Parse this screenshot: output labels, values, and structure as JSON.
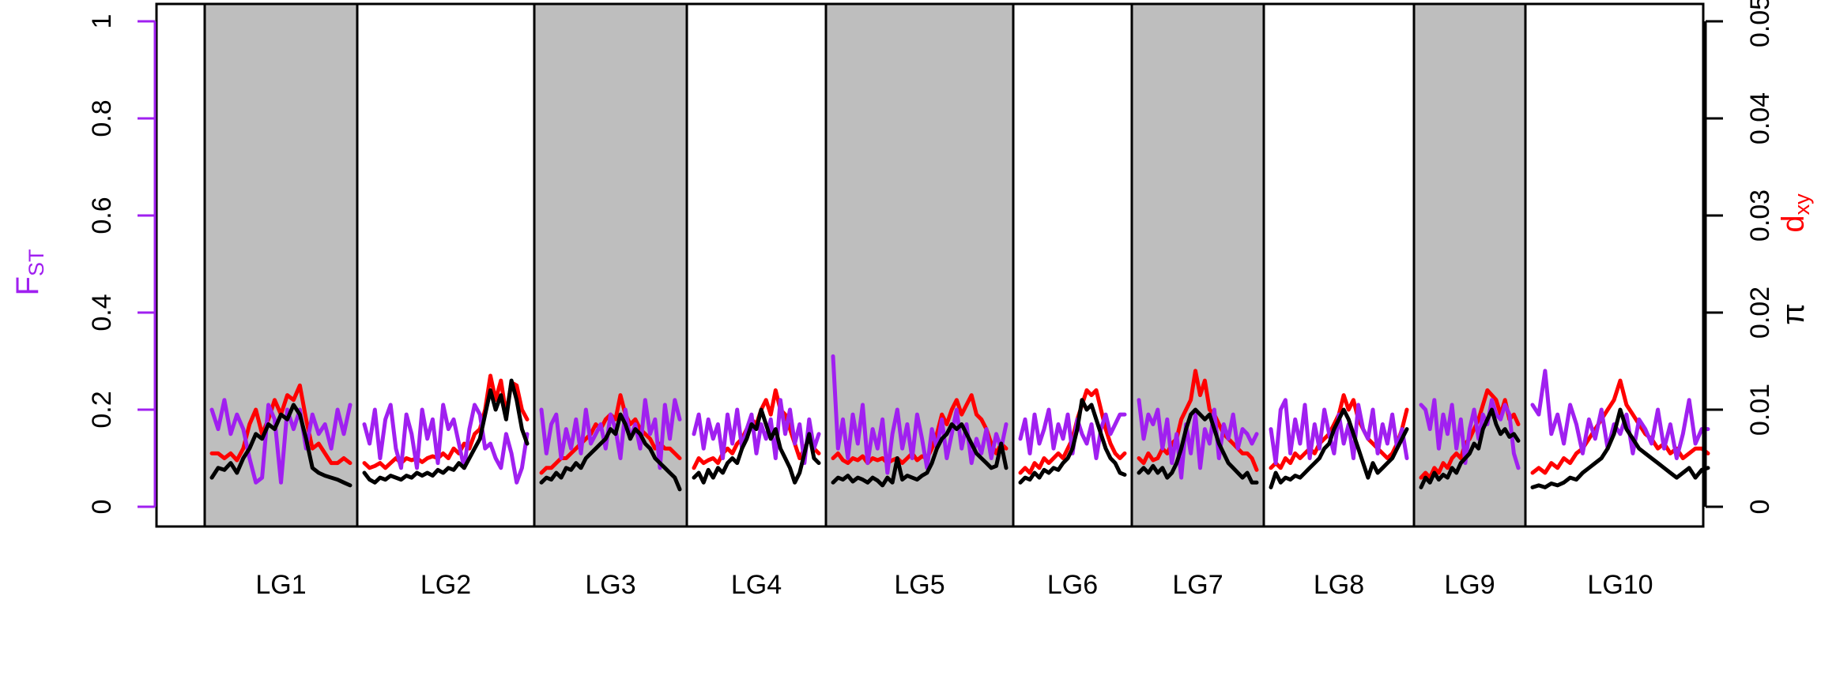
{
  "chart_data": {
    "type": "line",
    "title": "",
    "colors": {
      "fst": "#a020f0",
      "dxy": "#ff0000",
      "pi": "#000000",
      "shade": "#bebebe"
    },
    "y_left": {
      "label_main": "F",
      "label_sub": "ST",
      "ylim": [
        0,
        1
      ],
      "ticks": [
        "0",
        "0.2",
        "0.4",
        "0.6",
        "0.8",
        "1"
      ]
    },
    "y_right": {
      "labels": [
        "π",
        "d"
      ],
      "label_sub": "xy",
      "ylim": [
        0,
        0.05
      ],
      "ticks": [
        "0",
        "0.01",
        "0.02",
        "0.03",
        "0.04",
        "0.05"
      ]
    },
    "linkage_groups": [
      {
        "name": "LG1",
        "shaded": true
      },
      {
        "name": "LG2",
        "shaded": false
      },
      {
        "name": "LG3",
        "shaded": true
      },
      {
        "name": "LG4",
        "shaded": false
      },
      {
        "name": "LG5",
        "shaded": true
      },
      {
        "name": "LG6",
        "shaded": false
      },
      {
        "name": "LG7",
        "shaded": true
      },
      {
        "name": "LG8",
        "shaded": false
      },
      {
        "name": "LG9",
        "shaded": true
      },
      {
        "name": "LG10",
        "shaded": false
      }
    ],
    "series": [
      {
        "key": "fst",
        "axis": "left",
        "values": [
          [
            0.2,
            0.16,
            0.22,
            0.15,
            0.19,
            0.16,
            0.1,
            0.05,
            0.06,
            0.21,
            0.18,
            0.05,
            0.2,
            0.16,
            0.2,
            0.12,
            0.19,
            0.15,
            0.17,
            0.12,
            0.2,
            0.15,
            0.21
          ],
          [
            0.17,
            0.13,
            0.2,
            0.1,
            0.18,
            0.21,
            0.12,
            0.08,
            0.19,
            0.15,
            0.08,
            0.2,
            0.14,
            0.18,
            0.09,
            0.21,
            0.16,
            0.18,
            0.13,
            0.08,
            0.16,
            0.21,
            0.19,
            0.12,
            0.13,
            0.1,
            0.08,
            0.15,
            0.11,
            0.05,
            0.08,
            0.15
          ],
          [
            0.2,
            0.11,
            0.17,
            0.19,
            0.1,
            0.16,
            0.12,
            0.18,
            0.11,
            0.2,
            0.13,
            0.15,
            0.17,
            0.12,
            0.19,
            0.16,
            0.1,
            0.2,
            0.14,
            0.17,
            0.12,
            0.22,
            0.15,
            0.18,
            0.08,
            0.21,
            0.14,
            0.22,
            0.18
          ],
          [
            0.15,
            0.19,
            0.12,
            0.18,
            0.14,
            0.17,
            0.1,
            0.19,
            0.13,
            0.2,
            0.12,
            0.16,
            0.19,
            0.11,
            0.17,
            0.14,
            0.18,
            0.1,
            0.22,
            0.15,
            0.2,
            0.13,
            0.17,
            0.09,
            0.18,
            0.12,
            0.15
          ],
          [
            0.31,
            0.12,
            0.18,
            0.1,
            0.19,
            0.13,
            0.21,
            0.09,
            0.16,
            0.12,
            0.18,
            0.07,
            0.15,
            0.2,
            0.12,
            0.17,
            0.1,
            0.19,
            0.14,
            0.08,
            0.16,
            0.12,
            0.18,
            0.1,
            0.15,
            0.2,
            0.12,
            0.17,
            0.09,
            0.14,
            0.11,
            0.16,
            0.1,
            0.15,
            0.12,
            0.17
          ],
          [
            0.14,
            0.18,
            0.11,
            0.19,
            0.13,
            0.16,
            0.2,
            0.12,
            0.17,
            0.14,
            0.19,
            0.11,
            0.18,
            0.15,
            0.13,
            0.17,
            0.1,
            0.16,
            0.19,
            0.15,
            0.17,
            0.19,
            0.19
          ],
          [
            0.22,
            0.14,
            0.19,
            0.17,
            0.2,
            0.12,
            0.18,
            0.09,
            0.15,
            0.06,
            0.17,
            0.11,
            0.19,
            0.08,
            0.16,
            0.13,
            0.2,
            0.1,
            0.17,
            0.14,
            0.19,
            0.12,
            0.16,
            0.15,
            0.13,
            0.15
          ],
          [
            0.16,
            0.09,
            0.2,
            0.22,
            0.11,
            0.18,
            0.13,
            0.21,
            0.1,
            0.17,
            0.12,
            0.2,
            0.15,
            0.11,
            0.19,
            0.13,
            0.17,
            0.1,
            0.21,
            0.16,
            0.14,
            0.2,
            0.11,
            0.17,
            0.13,
            0.19,
            0.12,
            0.16,
            0.1
          ],
          [
            0.21,
            0.2,
            0.16,
            0.22,
            0.12,
            0.19,
            0.15,
            0.21,
            0.12,
            0.18,
            0.09,
            0.16,
            0.2,
            0.14,
            0.19,
            0.17,
            0.22,
            0.19,
            0.18,
            0.21,
            0.19,
            0.11,
            0.08
          ],
          [
            0.21,
            0.19,
            0.28,
            0.15,
            0.19,
            0.13,
            0.21,
            0.17,
            0.11,
            0.18,
            0.14,
            0.2,
            0.12,
            0.17,
            0.15,
            0.19,
            0.11,
            0.18,
            0.16,
            0.13,
            0.2,
            0.12,
            0.17,
            0.1,
            0.15,
            0.22,
            0.13,
            0.16,
            0.16
          ]
        ]
      },
      {
        "key": "dxy",
        "axis": "right",
        "values": [
          [
            0.0055,
            0.0055,
            0.005,
            0.0055,
            0.0048,
            0.006,
            0.0085,
            0.01,
            0.0075,
            0.009,
            0.011,
            0.0095,
            0.0115,
            0.011,
            0.0125,
            0.009,
            0.006,
            0.0065,
            0.0055,
            0.0045,
            0.0045,
            0.005,
            0.0045
          ],
          [
            0.0045,
            0.004,
            0.0042,
            0.0045,
            0.004,
            0.0045,
            0.005,
            0.0045,
            0.005,
            0.0048,
            0.005,
            0.0046,
            0.005,
            0.0052,
            0.005,
            0.0055,
            0.005,
            0.006,
            0.0055,
            0.0065,
            0.006,
            0.0075,
            0.008,
            0.01,
            0.0135,
            0.011,
            0.013,
            0.0095,
            0.0128,
            0.0125,
            0.01,
            0.009
          ],
          [
            0.0035,
            0.004,
            0.004,
            0.0045,
            0.005,
            0.005,
            0.0055,
            0.006,
            0.0065,
            0.007,
            0.0075,
            0.0085,
            0.008,
            0.009,
            0.0095,
            0.009,
            0.0115,
            0.0095,
            0.0085,
            0.009,
            0.008,
            0.0075,
            0.007,
            0.006,
            0.0065,
            0.006,
            0.006,
            0.0055,
            0.005
          ],
          [
            0.004,
            0.005,
            0.0045,
            0.0048,
            0.005,
            0.0045,
            0.0055,
            0.006,
            0.0055,
            0.0065,
            0.007,
            0.008,
            0.009,
            0.0085,
            0.01,
            0.011,
            0.0095,
            0.012,
            0.01,
            0.0095,
            0.008,
            0.0065,
            0.005,
            0.006,
            0.007,
            0.006,
            0.0055
          ],
          [
            0.005,
            0.0055,
            0.0048,
            0.0045,
            0.005,
            0.0048,
            0.0052,
            0.0045,
            0.005,
            0.0048,
            0.005,
            0.0045,
            0.0048,
            0.005,
            0.0045,
            0.005,
            0.0055,
            0.0048,
            0.0052,
            0.005,
            0.006,
            0.0075,
            0.0095,
            0.0085,
            0.01,
            0.011,
            0.0095,
            0.0105,
            0.0115,
            0.0095,
            0.009,
            0.008,
            0.0065,
            0.0055,
            0.0065,
            0.006
          ],
          [
            0.0035,
            0.004,
            0.0035,
            0.0045,
            0.004,
            0.005,
            0.0045,
            0.005,
            0.0055,
            0.005,
            0.006,
            0.007,
            0.009,
            0.0105,
            0.012,
            0.0115,
            0.012,
            0.01,
            0.008,
            0.0065,
            0.0055,
            0.005,
            0.0055
          ],
          [
            0.005,
            0.0045,
            0.0055,
            0.0048,
            0.005,
            0.006,
            0.0055,
            0.0065,
            0.007,
            0.009,
            0.01,
            0.011,
            0.014,
            0.0115,
            0.013,
            0.01,
            0.0095,
            0.0085,
            0.0075,
            0.007,
            0.0065,
            0.006,
            0.0055,
            0.0055,
            0.005,
            0.0038
          ],
          [
            0.004,
            0.0045,
            0.004,
            0.005,
            0.0045,
            0.0055,
            0.005,
            0.0055,
            0.006,
            0.0055,
            0.0065,
            0.007,
            0.0075,
            0.0085,
            0.0095,
            0.0115,
            0.01,
            0.011,
            0.009,
            0.008,
            0.007,
            0.0065,
            0.006,
            0.0055,
            0.005,
            0.0055,
            0.0065,
            0.008,
            0.01
          ],
          [
            0.003,
            0.0035,
            0.003,
            0.004,
            0.0035,
            0.0045,
            0.004,
            0.005,
            0.0055,
            0.005,
            0.0065,
            0.007,
            0.008,
            0.009,
            0.0105,
            0.012,
            0.0115,
            0.011,
            0.0095,
            0.011,
            0.009,
            0.0095,
            0.0085
          ],
          [
            0.0035,
            0.004,
            0.0035,
            0.0045,
            0.004,
            0.005,
            0.0045,
            0.0055,
            0.006,
            0.007,
            0.008,
            0.009,
            0.01,
            0.011,
            0.013,
            0.0105,
            0.0095,
            0.0085,
            0.0075,
            0.007,
            0.006,
            0.0065,
            0.0055,
            0.006,
            0.005,
            0.0055,
            0.006,
            0.006,
            0.0055
          ]
        ]
      },
      {
        "key": "pi",
        "axis": "right",
        "values": [
          [
            0.003,
            0.004,
            0.0038,
            0.0045,
            0.0035,
            0.005,
            0.006,
            0.0075,
            0.007,
            0.0085,
            0.008,
            0.0095,
            0.009,
            0.0105,
            0.0095,
            0.007,
            0.004,
            0.0035,
            0.0032,
            0.003,
            0.0028,
            0.0025,
            0.0022
          ],
          [
            0.0035,
            0.0028,
            0.0025,
            0.003,
            0.0028,
            0.0032,
            0.003,
            0.0028,
            0.0032,
            0.003,
            0.0035,
            0.0032,
            0.0035,
            0.0032,
            0.0038,
            0.0035,
            0.004,
            0.0038,
            0.0045,
            0.004,
            0.005,
            0.006,
            0.007,
            0.0095,
            0.012,
            0.01,
            0.0115,
            0.009,
            0.013,
            0.011,
            0.008,
            0.0065
          ],
          [
            0.0025,
            0.003,
            0.0028,
            0.0035,
            0.003,
            0.004,
            0.0038,
            0.0045,
            0.004,
            0.005,
            0.0055,
            0.006,
            0.0065,
            0.007,
            0.008,
            0.0075,
            0.0095,
            0.0085,
            0.007,
            0.008,
            0.0075,
            0.0065,
            0.006,
            0.005,
            0.0045,
            0.004,
            0.0035,
            0.003,
            0.0018
          ],
          [
            0.003,
            0.0035,
            0.0025,
            0.0038,
            0.003,
            0.004,
            0.0035,
            0.0045,
            0.005,
            0.0045,
            0.006,
            0.007,
            0.0085,
            0.008,
            0.01,
            0.0085,
            0.007,
            0.008,
            0.006,
            0.005,
            0.004,
            0.0025,
            0.0035,
            0.0055,
            0.0075,
            0.005,
            0.0045
          ],
          [
            0.0025,
            0.003,
            0.0028,
            0.0032,
            0.0026,
            0.003,
            0.0028,
            0.0025,
            0.003,
            0.0027,
            0.0022,
            0.003,
            0.0025,
            0.005,
            0.0028,
            0.0032,
            0.003,
            0.0028,
            0.0032,
            0.0035,
            0.0045,
            0.006,
            0.007,
            0.0075,
            0.0085,
            0.008,
            0.0085,
            0.0075,
            0.0065,
            0.0055,
            0.005,
            0.0045,
            0.004,
            0.0042,
            0.0065,
            0.004
          ],
          [
            0.0025,
            0.003,
            0.0028,
            0.0035,
            0.003,
            0.0038,
            0.0035,
            0.004,
            0.0038,
            0.0045,
            0.005,
            0.006,
            0.008,
            0.011,
            0.01,
            0.0105,
            0.009,
            0.0075,
            0.006,
            0.005,
            0.0045,
            0.0035,
            0.0033
          ],
          [
            0.0035,
            0.004,
            0.0035,
            0.0042,
            0.0035,
            0.004,
            0.003,
            0.0035,
            0.0045,
            0.006,
            0.008,
            0.0095,
            0.01,
            0.0095,
            0.009,
            0.0095,
            0.008,
            0.0065,
            0.0055,
            0.0045,
            0.004,
            0.0035,
            0.003,
            0.0035,
            0.0025,
            0.0025
          ],
          [
            0.002,
            0.0035,
            0.0025,
            0.003,
            0.0028,
            0.0032,
            0.003,
            0.0035,
            0.004,
            0.0045,
            0.005,
            0.006,
            0.0065,
            0.008,
            0.009,
            0.01,
            0.009,
            0.0075,
            0.006,
            0.0045,
            0.003,
            0.0045,
            0.0035,
            0.004,
            0.0045,
            0.005,
            0.006,
            0.007,
            0.008
          ],
          [
            0.002,
            0.003,
            0.0025,
            0.0035,
            0.0028,
            0.0033,
            0.003,
            0.004,
            0.0035,
            0.0045,
            0.005,
            0.0055,
            0.0065,
            0.006,
            0.008,
            0.009,
            0.01,
            0.0085,
            0.0075,
            0.008,
            0.0072,
            0.0075,
            0.0068
          ],
          [
            0.002,
            0.0022,
            0.002,
            0.0024,
            0.0022,
            0.0025,
            0.003,
            0.0028,
            0.0035,
            0.004,
            0.0045,
            0.005,
            0.006,
            0.0075,
            0.01,
            0.008,
            0.007,
            0.006,
            0.0055,
            0.005,
            0.0045,
            0.004,
            0.0035,
            0.003,
            0.0035,
            0.004,
            0.003,
            0.0038,
            0.004
          ]
        ]
      }
    ]
  }
}
